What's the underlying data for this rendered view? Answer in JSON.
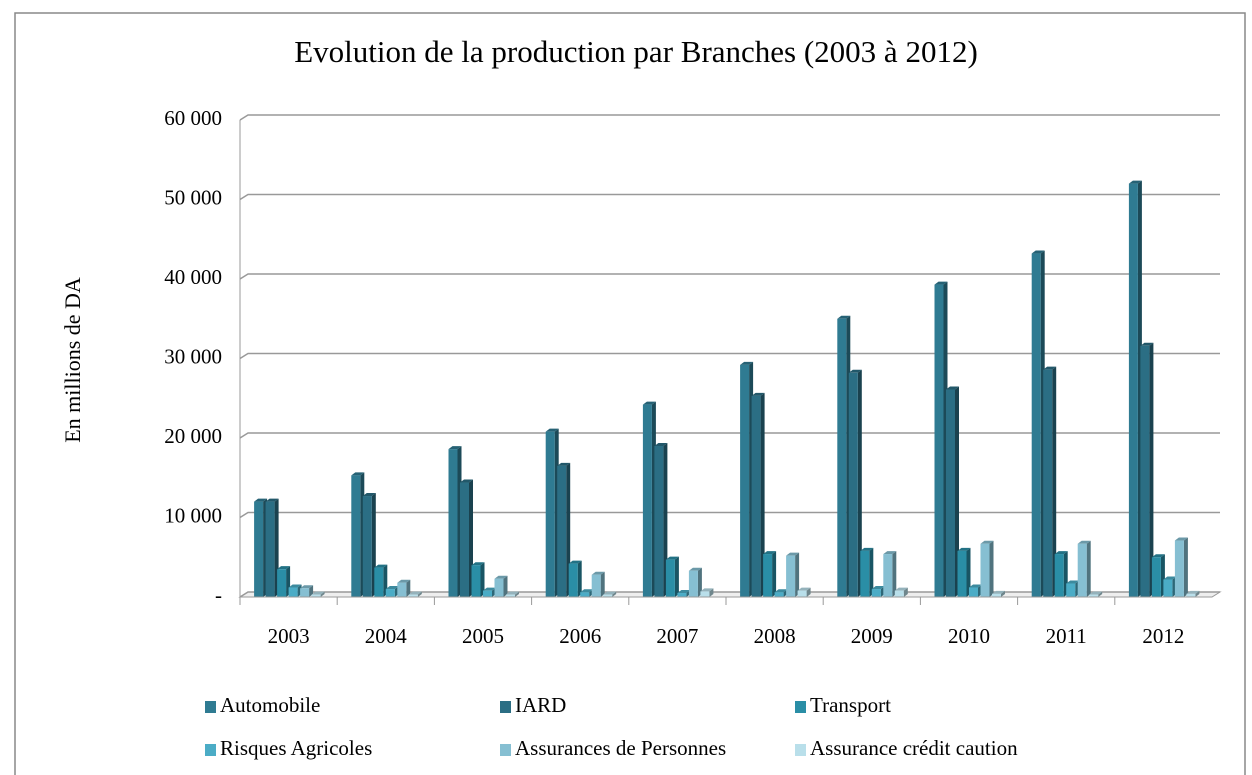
{
  "chart_data": {
    "type": "bar3d",
    "title": "Evolution de la production par Branches (2003 à 2012)",
    "y_label": "En millions de DA",
    "categories": [
      "2003",
      "2004",
      "2005",
      "2006",
      "2007",
      "2008",
      "2009",
      "2010",
      "2011",
      "2012"
    ],
    "series": [
      {
        "name": "Automobile",
        "color": "#2f7b92",
        "values": [
          12000,
          15300,
          18600,
          20800,
          24200,
          29200,
          35000,
          39300,
          43200,
          52000
        ]
      },
      {
        "name": "IARD",
        "color": "#2b6e84",
        "values": [
          12000,
          12700,
          14400,
          16500,
          19000,
          25300,
          28200,
          26100,
          28600,
          31600
        ]
      },
      {
        "name": "Transport",
        "color": "#2a8ea6",
        "values": [
          3500,
          3700,
          4000,
          4200,
          4700,
          5400,
          5800,
          5800,
          5400,
          5000
        ]
      },
      {
        "name": "Risques Agricoles",
        "color": "#4bacc6",
        "values": [
          1200,
          1000,
          800,
          600,
          500,
          600,
          1000,
          1200,
          1700,
          2200
        ]
      },
      {
        "name": "Assurances de Personnes",
        "color": "#86bfd2",
        "values": [
          1100,
          1800,
          2300,
          2800,
          3300,
          5200,
          5400,
          6700,
          6700,
          7100
        ]
      },
      {
        "name": "Assurance crédit caution",
        "color": "#b9dfea",
        "values": [
          300,
          300,
          300,
          300,
          700,
          800,
          800,
          400,
          300,
          400
        ]
      }
    ],
    "ylim": [
      0,
      60000
    ],
    "yticks": [
      {
        "value": 0,
        "label": "-"
      },
      {
        "value": 10000,
        "label": "10 000"
      },
      {
        "value": 20000,
        "label": "20 000"
      },
      {
        "value": 30000,
        "label": "30 000"
      },
      {
        "value": 40000,
        "label": "40 000"
      },
      {
        "value": 50000,
        "label": "50 000"
      },
      {
        "value": 60000,
        "label": "60 000"
      }
    ],
    "grid": true
  }
}
